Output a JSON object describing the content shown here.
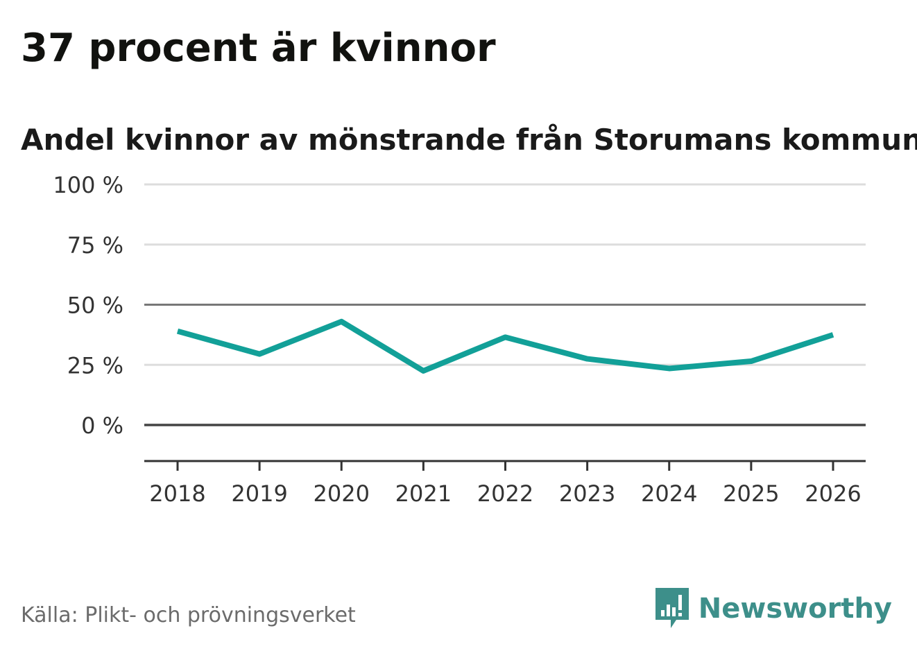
{
  "title": "37 procent är kvinnor",
  "chart_data": {
    "type": "line",
    "title": "Andel kvinnor av mönstrande från Storumans kommun",
    "xlabel": "",
    "ylabel": "",
    "categories": [
      "2018",
      "2019",
      "2020",
      "2021",
      "2022",
      "2023",
      "2024",
      "2025",
      "2026"
    ],
    "series": [
      {
        "name": "Andel kvinnor",
        "values": [
          39,
          29.5,
          43,
          22.5,
          36.5,
          27.5,
          23.5,
          26.5,
          37.5
        ]
      }
    ],
    "ylim": [
      -15,
      100
    ],
    "yticks": [
      100,
      75,
      50,
      25,
      0
    ],
    "ytick_labels": [
      "100 %",
      "75 %",
      "50 %",
      "25 %",
      "0 %"
    ],
    "grid": true,
    "legend": "none"
  },
  "source": "Källa: Plikt- och prövningsverket",
  "brand": {
    "name": "Newsworthy",
    "logo_icon": "newsworthy-logo-icon"
  },
  "colors": {
    "line": "#12a098",
    "grid": "#dddddd",
    "reference_line_50": "#777777",
    "zero_line": "#444444",
    "axis": "#333333",
    "brand": "#3d8f8a",
    "source_text": "#6b6b6b"
  }
}
